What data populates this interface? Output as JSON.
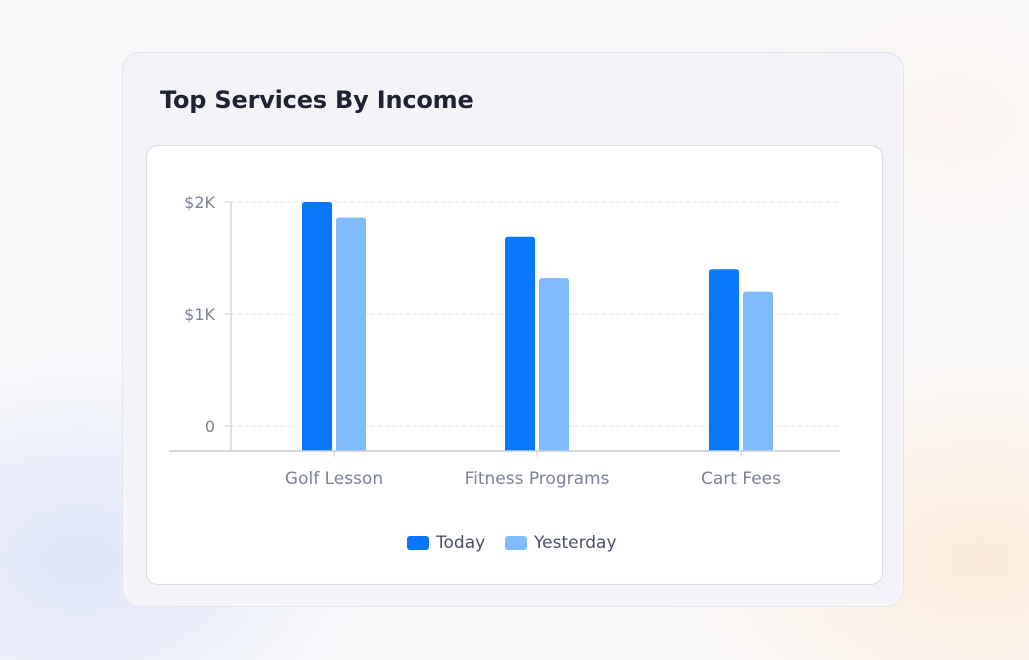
{
  "card": {
    "title": "Top Services By Income"
  },
  "colors": {
    "today": "#0877fb",
    "yesterday": "#80bbfd",
    "axis": "#c9ccd6",
    "grid": "#e2e4ea",
    "label": "#7b8294"
  },
  "chart_data": {
    "type": "bar",
    "categories": [
      "Golf Lesson",
      "Fitness Programs",
      "Cart Fees"
    ],
    "series": [
      {
        "name": "Today",
        "values": [
          2000,
          1690,
          1400
        ]
      },
      {
        "name": "Yesterday",
        "values": [
          1860,
          1320,
          1200
        ]
      }
    ],
    "y_ticks": [
      {
        "value": 2000,
        "label": "$2K"
      },
      {
        "value": 1000,
        "label": "$1K"
      },
      {
        "value": 0,
        "label": "0"
      }
    ],
    "ylim": [
      0,
      2000
    ],
    "grid": true,
    "legend_position": "bottom-center"
  }
}
